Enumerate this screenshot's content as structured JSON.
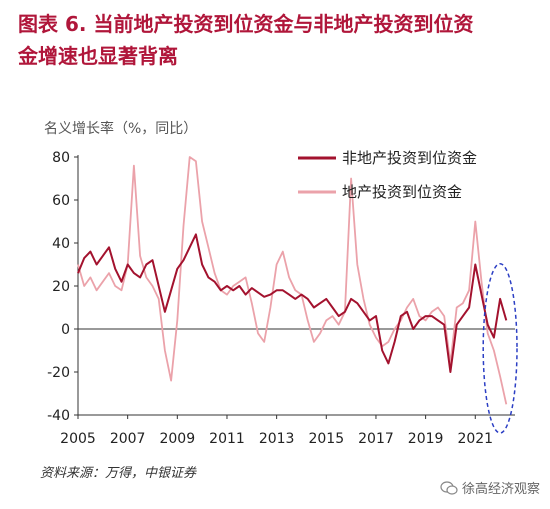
{
  "header": {
    "figure_no": "图表 6.",
    "title_line1": "当前地产投资到位资金与非地产投资到位资",
    "title_line2": "金增速也显著背离"
  },
  "footer": {
    "source": "资料来源：万得，中银证券",
    "watermark": "徐高经济观察"
  },
  "colors": {
    "title": "#b0163a",
    "non_real_estate": "#a3122e",
    "real_estate": "#eba2aa",
    "highlight_ellipse": "#2c3fc4"
  },
  "icons": {
    "watermark": "wechat-icon"
  },
  "chart_data": {
    "type": "line",
    "ylabel": "名义增长率（%，同比）",
    "xlabel": "",
    "ylim": [
      -40,
      80
    ],
    "yticks": [
      -40,
      -20,
      0,
      20,
      40,
      60,
      80
    ],
    "xlim": [
      2005,
      2022.6
    ],
    "xticks": [
      2005,
      2007,
      2009,
      2011,
      2013,
      2015,
      2017,
      2019,
      2021
    ],
    "grid": false,
    "legend": "top-right",
    "highlight": {
      "type": "ellipse",
      "x_range": [
        2021.4,
        2022.6
      ],
      "y_range": [
        -40,
        22
      ]
    },
    "series": [
      {
        "name": "非地产投资到位资金",
        "color": "#a3122e",
        "x": [
          2005.0,
          2005.25,
          2005.5,
          2005.75,
          2006.0,
          2006.25,
          2006.5,
          2006.75,
          2007.0,
          2007.25,
          2007.5,
          2007.75,
          2008.0,
          2008.25,
          2008.5,
          2008.75,
          2009.0,
          2009.25,
          2009.5,
          2009.75,
          2010.0,
          2010.25,
          2010.5,
          2010.75,
          2011.0,
          2011.25,
          2011.5,
          2011.75,
          2012.0,
          2012.25,
          2012.5,
          2012.75,
          2013.0,
          2013.25,
          2013.5,
          2013.75,
          2014.0,
          2014.25,
          2014.5,
          2014.75,
          2015.0,
          2015.25,
          2015.5,
          2015.75,
          2016.0,
          2016.25,
          2016.5,
          2016.75,
          2017.0,
          2017.25,
          2017.5,
          2017.75,
          2018.0,
          2018.25,
          2018.5,
          2018.75,
          2019.0,
          2019.25,
          2019.5,
          2019.75,
          2020.0,
          2020.25,
          2020.5,
          2020.75,
          2021.0,
          2021.25,
          2021.5,
          2021.75,
          2022.0,
          2022.25
        ],
        "values": [
          26,
          33,
          36,
          30,
          34,
          38,
          28,
          22,
          30,
          26,
          24,
          30,
          32,
          20,
          8,
          18,
          28,
          32,
          38,
          44,
          30,
          24,
          22,
          18,
          20,
          18,
          20,
          16,
          19,
          17,
          15,
          16,
          18,
          18,
          16,
          14,
          16,
          14,
          10,
          12,
          14,
          10,
          6,
          8,
          14,
          12,
          8,
          4,
          6,
          -10,
          -16,
          -6,
          6,
          8,
          0,
          4,
          6,
          6,
          4,
          2,
          -20,
          2,
          6,
          10,
          30,
          16,
          2,
          -4,
          14,
          4
        ]
      },
      {
        "name": "地产投资到位资金",
        "color": "#eba2aa",
        "x": [
          2005.0,
          2005.25,
          2005.5,
          2005.75,
          2006.0,
          2006.25,
          2006.5,
          2006.75,
          2007.0,
          2007.25,
          2007.5,
          2007.75,
          2008.0,
          2008.25,
          2008.5,
          2008.75,
          2009.0,
          2009.25,
          2009.5,
          2009.75,
          2010.0,
          2010.25,
          2010.5,
          2010.75,
          2011.0,
          2011.25,
          2011.5,
          2011.75,
          2012.0,
          2012.25,
          2012.5,
          2012.75,
          2013.0,
          2013.25,
          2013.5,
          2013.75,
          2014.0,
          2014.25,
          2014.5,
          2014.75,
          2015.0,
          2015.25,
          2015.5,
          2015.75,
          2016.0,
          2016.25,
          2016.5,
          2016.75,
          2017.0,
          2017.25,
          2017.5,
          2017.75,
          2018.0,
          2018.25,
          2018.5,
          2018.75,
          2019.0,
          2019.25,
          2019.5,
          2019.75,
          2020.0,
          2020.25,
          2020.5,
          2020.75,
          2021.0,
          2021.25,
          2021.5,
          2021.75,
          2022.0,
          2022.25
        ],
        "values": [
          30,
          20,
          24,
          18,
          22,
          26,
          20,
          18,
          30,
          76,
          34,
          24,
          20,
          14,
          -10,
          -24,
          4,
          48,
          80,
          78,
          50,
          38,
          26,
          18,
          16,
          20,
          22,
          24,
          12,
          -2,
          -6,
          10,
          30,
          36,
          24,
          18,
          16,
          4,
          -6,
          -2,
          4,
          6,
          2,
          8,
          70,
          30,
          14,
          2,
          -4,
          -8,
          -6,
          0,
          4,
          10,
          14,
          6,
          4,
          8,
          10,
          6,
          -16,
          10,
          12,
          18,
          50,
          22,
          -2,
          -10,
          -22,
          -35
        ]
      }
    ]
  }
}
